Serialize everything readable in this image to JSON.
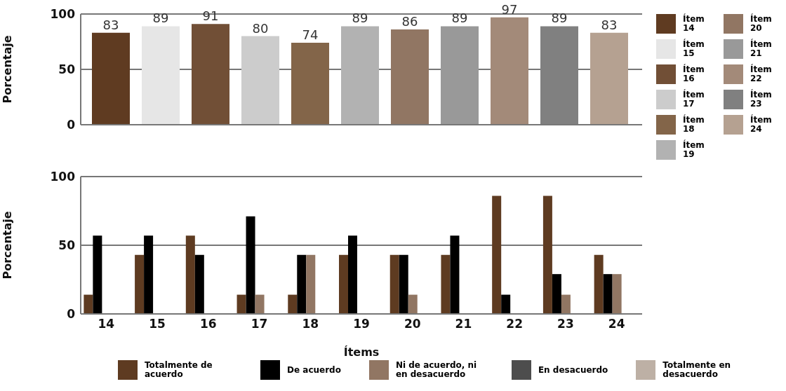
{
  "chart_data": [
    {
      "type": "bar",
      "ylabel": "Porcentaje",
      "categories": [
        null
      ],
      "series": [
        {
          "name": "Ítem 14",
          "color": "#5f3b21",
          "values": [
            83
          ]
        },
        {
          "name": "Ítem 15",
          "color": "#e6e6e6",
          "values": [
            89
          ]
        },
        {
          "name": "Ítem 16",
          "color": "#714f36",
          "values": [
            91
          ]
        },
        {
          "name": "Ítem 17",
          "color": "#cccccc",
          "values": [
            80
          ]
        },
        {
          "name": "Ítem 18",
          "color": "#836549",
          "values": [
            74
          ]
        },
        {
          "name": "Ítem 19",
          "color": "#b2b2b2",
          "values": [
            89
          ]
        },
        {
          "name": "Ítem 20",
          "color": "#917663",
          "values": [
            86
          ]
        },
        {
          "name": "Ítem 21",
          "color": "#999999",
          "values": [
            89
          ]
        },
        {
          "name": "Ítem 22",
          "color": "#a38a79",
          "values": [
            97
          ]
        },
        {
          "name": "Ítem 23",
          "color": "#808080",
          "values": [
            89
          ]
        },
        {
          "name": "Ítem 24",
          "color": "#b5a191",
          "values": [
            83
          ]
        }
      ],
      "ylim": [
        0,
        100
      ],
      "yticks": [
        0,
        50,
        100
      ],
      "grid": "y",
      "legend": "right",
      "data_labels": true
    },
    {
      "type": "bar",
      "xlabel": "Ítems",
      "ylabel": "Porcentaje",
      "categories": [
        "14",
        "15",
        "16",
        "17",
        "18",
        "19",
        "20",
        "21",
        "22",
        "23",
        "24"
      ],
      "series": [
        {
          "name": "Totalmente de acuerdo",
          "color": "#5e3b21",
          "values": [
            14,
            43,
            57,
            14,
            14,
            43,
            43,
            43,
            86,
            86,
            43
          ]
        },
        {
          "name": "De acuerdo",
          "color": "#000000",
          "values": [
            57,
            57,
            43,
            71,
            43,
            57,
            43,
            57,
            14,
            29,
            29
          ]
        },
        {
          "name": "Ni de acuerdo, ni en desacuerdo",
          "color": "#917663",
          "values": [
            0,
            0,
            0,
            14,
            43,
            0,
            14,
            0,
            0,
            14,
            29
          ]
        },
        {
          "name": "En desacuerdo",
          "color": "#4d4d4d",
          "values": [
            0,
            0,
            0,
            0,
            0,
            0,
            0,
            0,
            0,
            0,
            0
          ]
        },
        {
          "name": "Totalmente en desacuerdo",
          "color": "#bdb0a5",
          "values": [
            0,
            0,
            0,
            0,
            0,
            0,
            0,
            0,
            0,
            0,
            0
          ]
        }
      ],
      "ylim": [
        0,
        100
      ],
      "yticks": [
        0,
        50,
        100
      ],
      "grid": "y",
      "legend": "bottom"
    }
  ]
}
